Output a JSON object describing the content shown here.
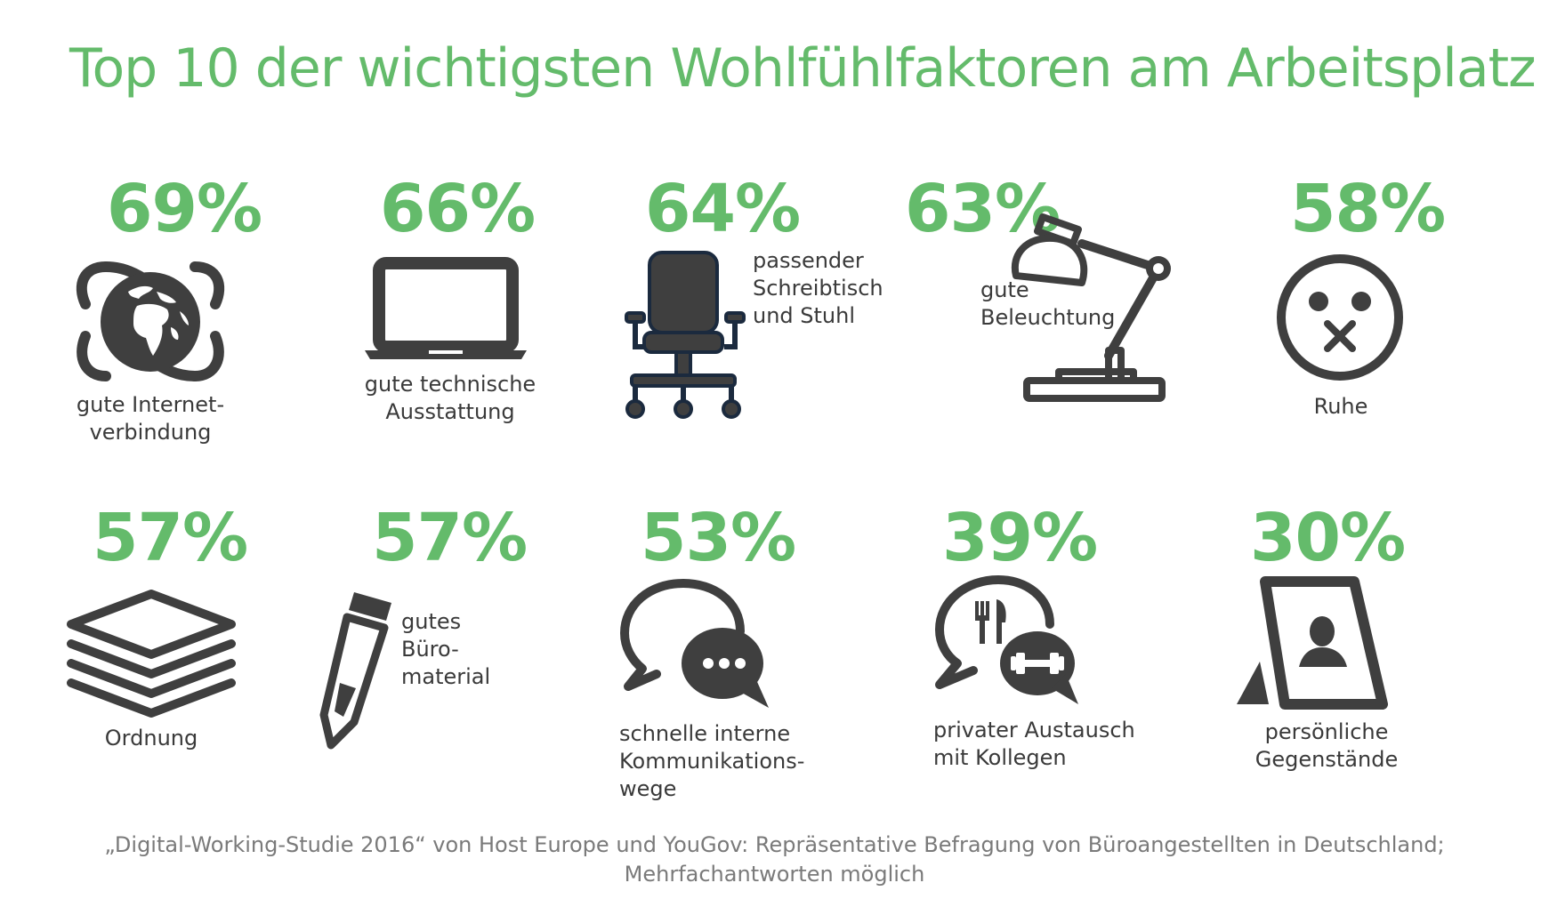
{
  "chart_data": {
    "type": "table",
    "title": "Top 10 der wichtigsten Wohlfühlfaktoren am Arbeitsplatz",
    "unit": "%",
    "items": [
      {
        "value": 69,
        "value_label": "69%",
        "label": "gute Internet-\nverbindung",
        "icon": "globe-icon"
      },
      {
        "value": 66,
        "value_label": "66%",
        "label": "gute technische\nAusstattung",
        "icon": "laptop-icon"
      },
      {
        "value": 64,
        "value_label": "64%",
        "label": "passender\nSchreibtisch\nund Stuhl",
        "icon": "office-chair-icon"
      },
      {
        "value": 63,
        "value_label": "63%",
        "label": "gute\nBeleuchtung",
        "icon": "desk-lamp-icon"
      },
      {
        "value": 58,
        "value_label": "58%",
        "label": "Ruhe",
        "icon": "silent-face-icon"
      },
      {
        "value": 57,
        "value_label": "57%",
        "label": "Ordnung",
        "icon": "paper-stack-icon"
      },
      {
        "value": 57,
        "value_label": "57%",
        "label": "gutes\nBüro-\nmaterial",
        "icon": "pencil-icon"
      },
      {
        "value": 53,
        "value_label": "53%",
        "label": "schnelle interne\nKommunikations-\nwege",
        "icon": "chat-bubbles-icon"
      },
      {
        "value": 39,
        "value_label": "39%",
        "label": "privater Austausch\nmit Kollegen",
        "icon": "lunch-break-chat-icon"
      },
      {
        "value": 30,
        "value_label": "30%",
        "label": "persönliche\nGegenstände",
        "icon": "photo-frame-icon"
      }
    ],
    "source": "„Digital-Working-Studie 2016“ von Host Europe und YouGov: Repräsentative Befragung von Büroangestellten in Deutschland;\nMehrfachantworten möglich"
  },
  "colors": {
    "accent": "#64bb6b",
    "icon": "#3f3f3f",
    "chair_outline": "#1b2a3e",
    "text": "#3a3a3a",
    "source_text": "#7a7a7a"
  }
}
